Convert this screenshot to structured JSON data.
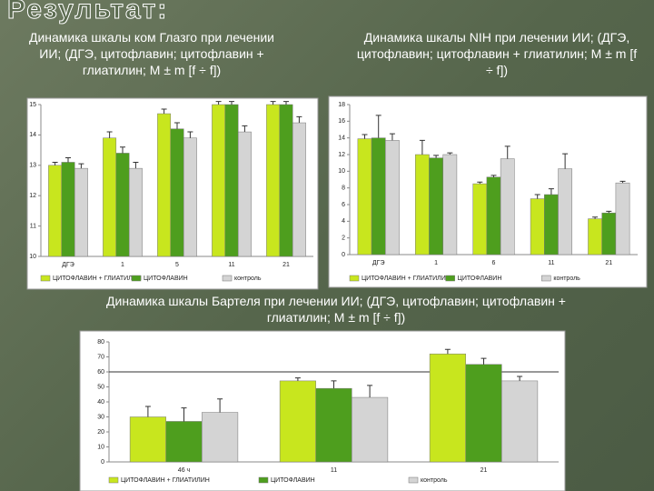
{
  "title": "Результат:",
  "chart_data": [
    {
      "type": "bar",
      "title": "Динамика шкалы ком Глазго при лечении ИИ; (ДГЭ, цитофлавин; цитофлавин + глиатилин; M ± m [f ÷ f])",
      "categories": [
        "ДГЭ",
        "1",
        "5",
        "11",
        "21"
      ],
      "series": [
        {
          "name": "ЦИТОФЛАВИН + ГЛИАТИЛИН",
          "color": "#c8e61e",
          "values": [
            13,
            13.9,
            14.7,
            15,
            15
          ],
          "errors": [
            0.1,
            0.2,
            0.15,
            0.1,
            0.1
          ]
        },
        {
          "name": "ЦИТОФЛАВИН",
          "color": "#4e9e1e",
          "values": [
            13.1,
            13.4,
            14.2,
            15,
            15
          ],
          "errors": [
            0.15,
            0.2,
            0.2,
            0.1,
            0.1
          ]
        },
        {
          "name": "контроль",
          "color": "#d4d4d4",
          "values": [
            12.9,
            12.9,
            13.9,
            14.1,
            14.4
          ],
          "errors": [
            0.15,
            0.2,
            0.2,
            0.2,
            0.2
          ]
        }
      ],
      "ylim": [
        10,
        15
      ],
      "yticks": [
        10,
        11,
        12,
        13,
        14,
        15
      ]
    },
    {
      "type": "bar",
      "title": "Динамика шкалы NIH при лечении ИИ; (ДГЭ, цитофлавин; цитофлавин + глиатилин; M ± m [f ÷ f])",
      "categories": [
        "ДГЭ",
        "1",
        "6",
        "11",
        "21"
      ],
      "series": [
        {
          "name": "ЦИТОФЛАВИН + ГЛИАТИЛИН",
          "color": "#c8e61e",
          "values": [
            13.9,
            12,
            8.5,
            6.7,
            4.3
          ],
          "errors": [
            0.5,
            1.7,
            0.2,
            0.5,
            0.2
          ]
        },
        {
          "name": "ЦИТОФЛАВИН",
          "color": "#4e9e1e",
          "values": [
            14,
            11.6,
            9.3,
            7.2,
            5
          ],
          "errors": [
            2.7,
            0.3,
            0.2,
            0.7,
            0.2
          ]
        },
        {
          "name": "контроль",
          "color": "#d4d4d4",
          "values": [
            13.7,
            12,
            11.5,
            10.3,
            8.6
          ],
          "errors": [
            0.8,
            0.2,
            1.5,
            1.8,
            0.2
          ]
        }
      ],
      "ylim": [
        0,
        18
      ],
      "yticks": [
        0,
        2,
        4,
        6,
        8,
        10,
        12,
        14,
        16,
        18
      ]
    },
    {
      "type": "bar",
      "title": "Динамика шкалы Бартеля при лечении ИИ; (ДГЭ, цитофлавин; цитофлавин + глиатилин; M ± m [f ÷ f])",
      "categories": [
        "46 ч",
        "11",
        "21"
      ],
      "series": [
        {
          "name": "ЦИТОФЛАВИН + ГЛИАТИЛИН",
          "color": "#c8e61e",
          "values": [
            30,
            54,
            72
          ],
          "errors": [
            7,
            2,
            3
          ]
        },
        {
          "name": "ЦИТОФЛАВИН",
          "color": "#4e9e1e",
          "values": [
            27,
            49,
            65
          ],
          "errors": [
            9,
            5,
            4
          ]
        },
        {
          "name": "контроль",
          "color": "#d4d4d4",
          "values": [
            33,
            43,
            54
          ],
          "errors": [
            9,
            8,
            3
          ]
        }
      ],
      "ylim": [
        0,
        80
      ],
      "yticks": [
        0,
        10,
        20,
        30,
        40,
        50,
        60,
        70,
        80
      ],
      "reference_line": 60
    }
  ]
}
